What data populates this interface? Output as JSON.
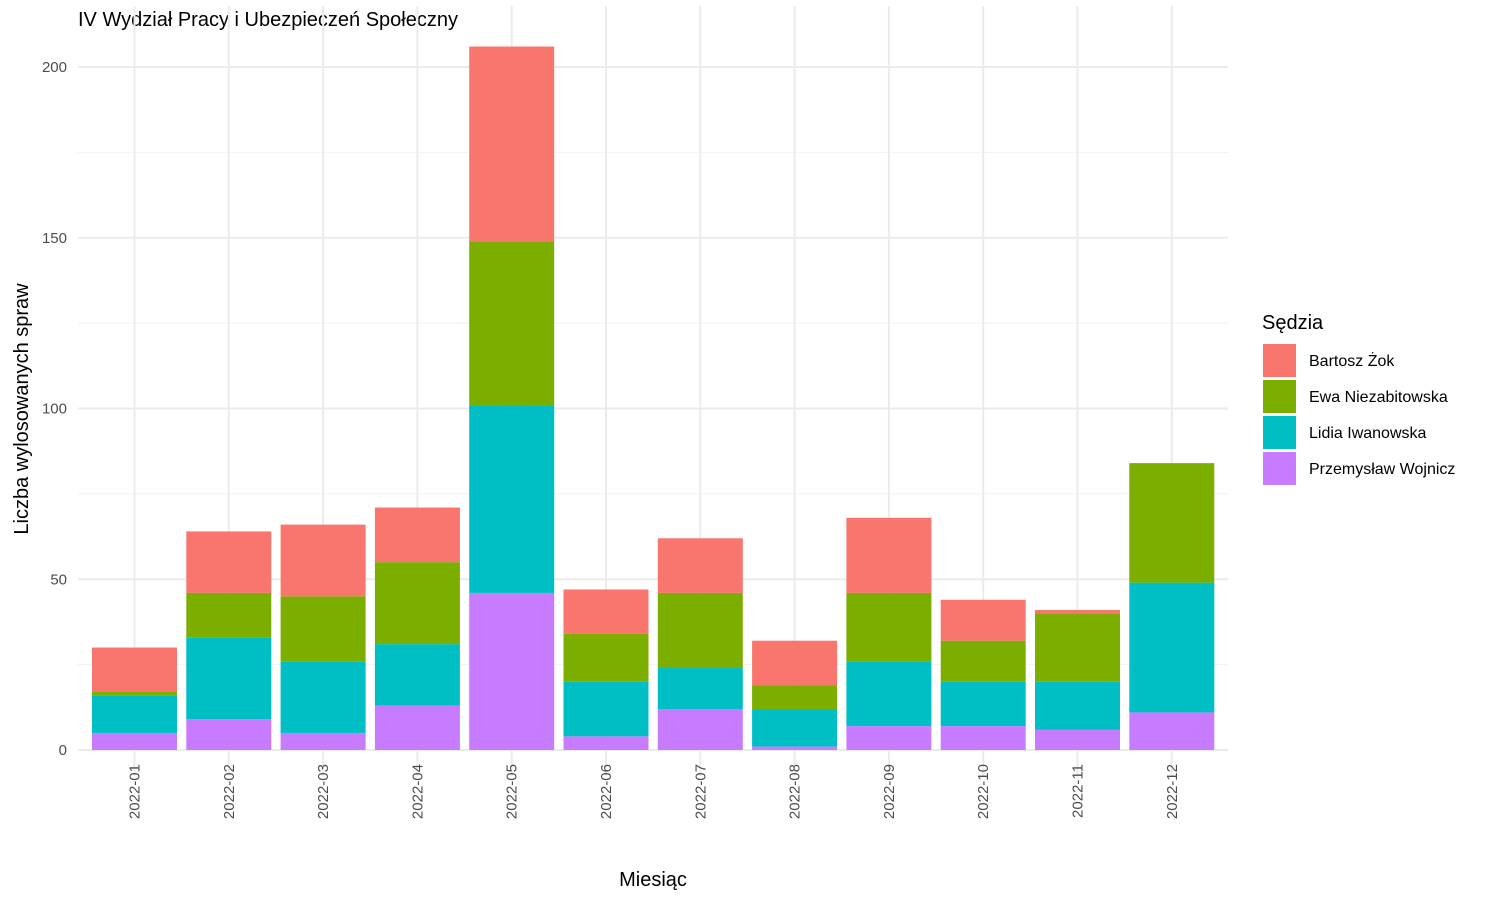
{
  "chart_data": {
    "type": "bar",
    "stacked": true,
    "title": "IV Wydział Pracy i Ubezpieczeń Społeczny",
    "xlabel": "Miesiąc",
    "ylabel": "Liczba wylosowanych spraw",
    "ylim": [
      0,
      210
    ],
    "yticks": [
      0,
      50,
      100,
      150,
      200
    ],
    "grid": true,
    "legend_position": "right",
    "legend_title": "Sędzia",
    "categories": [
      "2022-01",
      "2022-02",
      "2022-03",
      "2022-04",
      "2022-05",
      "2022-06",
      "2022-07",
      "2022-08",
      "2022-09",
      "2022-10",
      "2022-11",
      "2022-12"
    ],
    "series": [
      {
        "name": "Przemysław Wojnicz",
        "color": "#C77CFF",
        "values": [
          5,
          9,
          5,
          13,
          46,
          4,
          12,
          1,
          7,
          7,
          6,
          11
        ]
      },
      {
        "name": "Lidia Iwanowska",
        "color": "#00BFC4",
        "values": [
          11,
          24,
          21,
          18,
          55,
          16,
          12,
          11,
          19,
          13,
          14,
          38
        ]
      },
      {
        "name": "Ewa Niezabitowska",
        "color": "#7CAE00",
        "values": [
          1,
          13,
          19,
          24,
          48,
          14,
          22,
          7,
          20,
          12,
          20,
          35
        ]
      },
      {
        "name": "Bartosz Żok",
        "color": "#F8766D",
        "values": [
          13,
          18,
          21,
          16,
          57,
          13,
          16,
          13,
          22,
          12,
          1,
          0
        ]
      }
    ],
    "legend_order": [
      "Bartosz Żok",
      "Ewa Niezabitowska",
      "Lidia Iwanowska",
      "Przemysław Wojnicz"
    ]
  }
}
